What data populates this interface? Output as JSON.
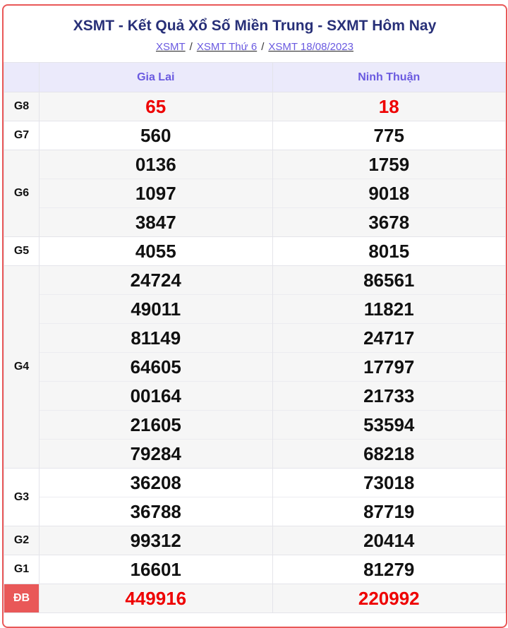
{
  "header": {
    "title": "XSMT - Kết Quả Xổ Số Miền Trung - SXMT Hôm Nay",
    "breadcrumbs": [
      "XSMT",
      "XSMT Thứ 6",
      "XSMT 18/08/2023"
    ],
    "separator": "/"
  },
  "columns": [
    "Gia Lai",
    "Ninh Thuận"
  ],
  "rows": [
    {
      "label": "G8",
      "values": [
        [
          "65"
        ],
        [
          "18"
        ]
      ],
      "highlight": true
    },
    {
      "label": "G7",
      "values": [
        [
          "560"
        ],
        [
          "775"
        ]
      ]
    },
    {
      "label": "G6",
      "values": [
        [
          "0136",
          "1097",
          "3847"
        ],
        [
          "1759",
          "9018",
          "3678"
        ]
      ]
    },
    {
      "label": "G5",
      "values": [
        [
          "4055"
        ],
        [
          "8015"
        ]
      ]
    },
    {
      "label": "G4",
      "values": [
        [
          "24724",
          "49011",
          "81149",
          "64605",
          "00164",
          "21605",
          "79284"
        ],
        [
          "86561",
          "11821",
          "24717",
          "17797",
          "21733",
          "53594",
          "68218"
        ]
      ]
    },
    {
      "label": "G3",
      "values": [
        [
          "36208",
          "36788"
        ],
        [
          "73018",
          "87719"
        ]
      ]
    },
    {
      "label": "G2",
      "values": [
        [
          "99312"
        ],
        [
          "20414"
        ]
      ]
    },
    {
      "label": "G1",
      "values": [
        [
          "16601"
        ],
        [
          "81279"
        ]
      ]
    },
    {
      "label": "ĐB",
      "values": [
        [
          "449916"
        ],
        [
          "220992"
        ]
      ],
      "highlight": true
    }
  ],
  "colors": {
    "title": "#283078",
    "link": "#6a5ae0",
    "highlight": "#ee0000",
    "border": "#e95858"
  }
}
